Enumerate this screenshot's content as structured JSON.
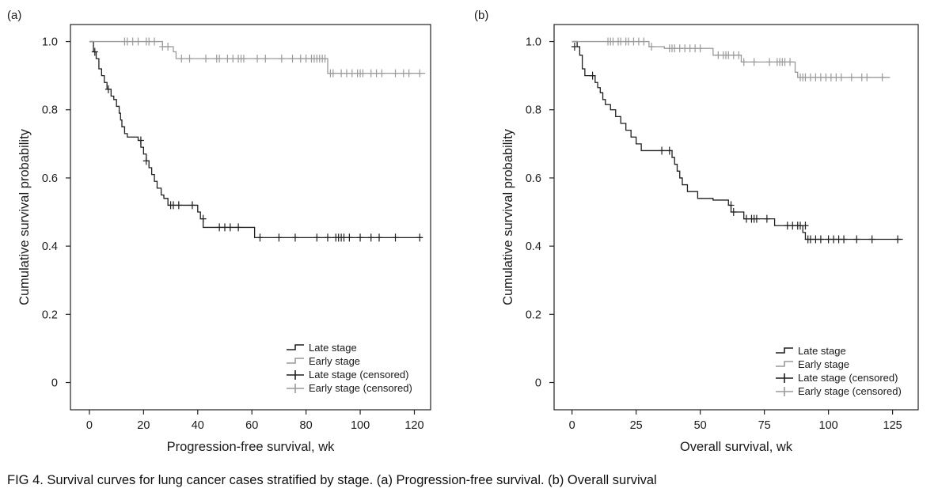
{
  "caption": "FIG 4.  Survival curves for lung cancer cases stratified by stage. (a) Progression-free survival. (b) Overall survival",
  "colors": {
    "late": "#1f1f1f",
    "early": "#9a9a9a",
    "axis": "#222222"
  },
  "chart_data": [
    {
      "type": "line",
      "step": true,
      "panel_label": "(a)",
      "xlabel": "Progression-free survival, wk",
      "ylabel": "Cumulative survival probability",
      "xlim": [
        -7,
        126
      ],
      "ylim": [
        -0.08,
        1.05
      ],
      "xticks": [
        0,
        20,
        40,
        60,
        80,
        100,
        120
      ],
      "xtick_labels": [
        "0",
        "20",
        "40",
        "60",
        "80",
        "100",
        "120"
      ],
      "yticks": [
        0,
        0.2,
        0.4,
        0.6,
        0.8,
        1.0
      ],
      "ytick_labels": [
        "0",
        "0.2",
        "0.4",
        "0.6",
        "0.8",
        "1.0"
      ],
      "legend": {
        "position": "bottom-right",
        "entries": [
          "Late stage",
          "Early stage",
          "Late stage (censored)",
          "Early stage (censored)"
        ]
      },
      "series": [
        {
          "name": "Late stage",
          "color": "late",
          "steps": [
            [
              0,
              1.0
            ],
            [
              1.5,
              0.97
            ],
            [
              2.5,
              0.95
            ],
            [
              3.5,
              0.92
            ],
            [
              4.5,
              0.9
            ],
            [
              5.5,
              0.88
            ],
            [
              6.5,
              0.86
            ],
            [
              8,
              0.84
            ],
            [
              9,
              0.83
            ],
            [
              10,
              0.81
            ],
            [
              11,
              0.79
            ],
            [
              11.5,
              0.77
            ],
            [
              12,
              0.75
            ],
            [
              13,
              0.73
            ],
            [
              14,
              0.72
            ],
            [
              18,
              0.71
            ],
            [
              19,
              0.69
            ],
            [
              20,
              0.67
            ],
            [
              21,
              0.65
            ],
            [
              22,
              0.63
            ],
            [
              23,
              0.61
            ],
            [
              24,
              0.59
            ],
            [
              25,
              0.57
            ],
            [
              26.5,
              0.55
            ],
            [
              27.5,
              0.54
            ],
            [
              29,
              0.52
            ],
            [
              40,
              0.5
            ],
            [
              41,
              0.48
            ],
            [
              42,
              0.455
            ],
            [
              61,
              0.425
            ],
            [
              123,
              0.425
            ]
          ],
          "censored": [
            [
              2,
              0.97
            ],
            [
              7,
              0.86
            ],
            [
              19,
              0.71
            ],
            [
              21,
              0.65
            ],
            [
              30,
              0.52
            ],
            [
              31,
              0.52
            ],
            [
              33,
              0.52
            ],
            [
              38,
              0.52
            ],
            [
              42,
              0.48
            ],
            [
              48,
              0.455
            ],
            [
              50,
              0.455
            ],
            [
              52,
              0.455
            ],
            [
              55,
              0.455
            ],
            [
              63,
              0.425
            ],
            [
              70,
              0.425
            ],
            [
              76,
              0.425
            ],
            [
              84,
              0.425
            ],
            [
              88,
              0.425
            ],
            [
              91,
              0.425
            ],
            [
              92,
              0.425
            ],
            [
              93,
              0.425
            ],
            [
              94,
              0.425
            ],
            [
              96,
              0.425
            ],
            [
              100,
              0.425
            ],
            [
              104,
              0.425
            ],
            [
              107,
              0.425
            ],
            [
              113,
              0.425
            ],
            [
              122,
              0.425
            ]
          ]
        },
        {
          "name": "Early stage",
          "color": "early",
          "steps": [
            [
              0,
              1.0
            ],
            [
              27,
              0.985
            ],
            [
              31,
              0.97
            ],
            [
              32,
              0.95
            ],
            [
              88,
              0.907
            ],
            [
              124,
              0.907
            ]
          ],
          "censored": [
            [
              13,
              1.0
            ],
            [
              14,
              1.0
            ],
            [
              16,
              1.0
            ],
            [
              18,
              1.0
            ],
            [
              21,
              1.0
            ],
            [
              22,
              1.0
            ],
            [
              24,
              1.0
            ],
            [
              27,
              0.985
            ],
            [
              29,
              0.985
            ],
            [
              34,
              0.95
            ],
            [
              37,
              0.95
            ],
            [
              43,
              0.95
            ],
            [
              47,
              0.95
            ],
            [
              48,
              0.95
            ],
            [
              51,
              0.95
            ],
            [
              53,
              0.95
            ],
            [
              55,
              0.95
            ],
            [
              56,
              0.95
            ],
            [
              57,
              0.95
            ],
            [
              62,
              0.95
            ],
            [
              65,
              0.95
            ],
            [
              71,
              0.95
            ],
            [
              75,
              0.95
            ],
            [
              78,
              0.95
            ],
            [
              80,
              0.95
            ],
            [
              82,
              0.95
            ],
            [
              83,
              0.95
            ],
            [
              84,
              0.95
            ],
            [
              85,
              0.95
            ],
            [
              86,
              0.95
            ],
            [
              87,
              0.95
            ],
            [
              89,
              0.907
            ],
            [
              90,
              0.907
            ],
            [
              93,
              0.907
            ],
            [
              95,
              0.907
            ],
            [
              97,
              0.907
            ],
            [
              99,
              0.907
            ],
            [
              100,
              0.907
            ],
            [
              101,
              0.907
            ],
            [
              104,
              0.907
            ],
            [
              106,
              0.907
            ],
            [
              108,
              0.907
            ],
            [
              113,
              0.907
            ],
            [
              116,
              0.907
            ],
            [
              118,
              0.907
            ],
            [
              122,
              0.907
            ]
          ]
        }
      ]
    },
    {
      "type": "line",
      "step": true,
      "panel_label": "(b)",
      "xlabel": "Overall survival,  wk",
      "ylabel": "Cumulative survival probability",
      "xlim": [
        -7,
        135
      ],
      "ylim": [
        -0.08,
        1.05
      ],
      "xticks": [
        0,
        25,
        50,
        75,
        100,
        125
      ],
      "xtick_labels": [
        "0",
        "25",
        "50",
        "75",
        "100",
        "125"
      ],
      "yticks": [
        0,
        0.2,
        0.4,
        0.6,
        0.8,
        1.0
      ],
      "ytick_labels": [
        "0",
        "0.2",
        "0.4",
        "0.6",
        "0.8",
        "1.0"
      ],
      "legend": {
        "position": "bottom-right",
        "entries": [
          "Late stage",
          "Early stage",
          "Late stage (censored)",
          "Early stage (censored)"
        ]
      },
      "series": [
        {
          "name": "Late stage",
          "color": "late",
          "steps": [
            [
              0,
              1.0
            ],
            [
              2,
              0.985
            ],
            [
              3,
              0.96
            ],
            [
              4,
              0.92
            ],
            [
              5,
              0.9
            ],
            [
              9,
              0.88
            ],
            [
              10,
              0.865
            ],
            [
              11,
              0.85
            ],
            [
              12,
              0.83
            ],
            [
              13,
              0.815
            ],
            [
              15,
              0.8
            ],
            [
              17,
              0.78
            ],
            [
              19,
              0.76
            ],
            [
              21,
              0.74
            ],
            [
              23,
              0.72
            ],
            [
              25,
              0.7
            ],
            [
              27,
              0.68
            ],
            [
              39,
              0.66
            ],
            [
              40,
              0.64
            ],
            [
              41,
              0.62
            ],
            [
              42,
              0.6
            ],
            [
              43,
              0.58
            ],
            [
              45,
              0.56
            ],
            [
              49,
              0.54
            ],
            [
              55,
              0.535
            ],
            [
              61,
              0.52
            ],
            [
              62,
              0.5
            ],
            [
              67,
              0.48
            ],
            [
              79,
              0.46
            ],
            [
              90,
              0.44
            ],
            [
              91,
              0.42
            ],
            [
              129,
              0.42
            ]
          ],
          "censored": [
            [
              1,
              0.985
            ],
            [
              8,
              0.9
            ],
            [
              35,
              0.68
            ],
            [
              38,
              0.68
            ],
            [
              62,
              0.52
            ],
            [
              63,
              0.5
            ],
            [
              68,
              0.48
            ],
            [
              70,
              0.48
            ],
            [
              71,
              0.48
            ],
            [
              72,
              0.48
            ],
            [
              76,
              0.48
            ],
            [
              84,
              0.46
            ],
            [
              86,
              0.46
            ],
            [
              88,
              0.46
            ],
            [
              89,
              0.46
            ],
            [
              91,
              0.46
            ],
            [
              92,
              0.42
            ],
            [
              93,
              0.42
            ],
            [
              95,
              0.42
            ],
            [
              97,
              0.42
            ],
            [
              100,
              0.42
            ],
            [
              102,
              0.42
            ],
            [
              104,
              0.42
            ],
            [
              106,
              0.42
            ],
            [
              111,
              0.42
            ],
            [
              117,
              0.42
            ],
            [
              127,
              0.42
            ]
          ]
        },
        {
          "name": "Early stage",
          "color": "early",
          "steps": [
            [
              0,
              1.0
            ],
            [
              30,
              0.985
            ],
            [
              36,
              0.98
            ],
            [
              55,
              0.96
            ],
            [
              66,
              0.94
            ],
            [
              87,
              0.91
            ],
            [
              88,
              0.895
            ],
            [
              124,
              0.895
            ]
          ],
          "censored": [
            [
              14,
              1.0
            ],
            [
              15,
              1.0
            ],
            [
              16,
              1.0
            ],
            [
              18,
              1.0
            ],
            [
              19,
              1.0
            ],
            [
              21,
              1.0
            ],
            [
              22,
              1.0
            ],
            [
              24,
              1.0
            ],
            [
              26,
              1.0
            ],
            [
              28,
              1.0
            ],
            [
              31,
              0.985
            ],
            [
              38,
              0.98
            ],
            [
              39,
              0.98
            ],
            [
              40,
              0.98
            ],
            [
              42,
              0.98
            ],
            [
              44,
              0.98
            ],
            [
              46,
              0.98
            ],
            [
              48,
              0.98
            ],
            [
              50,
              0.98
            ],
            [
              57,
              0.96
            ],
            [
              59,
              0.96
            ],
            [
              60,
              0.96
            ],
            [
              61,
              0.96
            ],
            [
              63,
              0.96
            ],
            [
              65,
              0.96
            ],
            [
              67,
              0.94
            ],
            [
              71,
              0.94
            ],
            [
              77,
              0.94
            ],
            [
              80,
              0.94
            ],
            [
              81,
              0.94
            ],
            [
              82,
              0.94
            ],
            [
              83,
              0.94
            ],
            [
              85,
              0.94
            ],
            [
              89,
              0.895
            ],
            [
              90,
              0.895
            ],
            [
              91,
              0.895
            ],
            [
              93,
              0.895
            ],
            [
              95,
              0.895
            ],
            [
              97,
              0.895
            ],
            [
              99,
              0.895
            ],
            [
              101,
              0.895
            ],
            [
              103,
              0.895
            ],
            [
              105,
              0.895
            ],
            [
              109,
              0.895
            ],
            [
              113,
              0.895
            ],
            [
              115,
              0.895
            ],
            [
              121,
              0.895
            ]
          ]
        }
      ]
    }
  ]
}
